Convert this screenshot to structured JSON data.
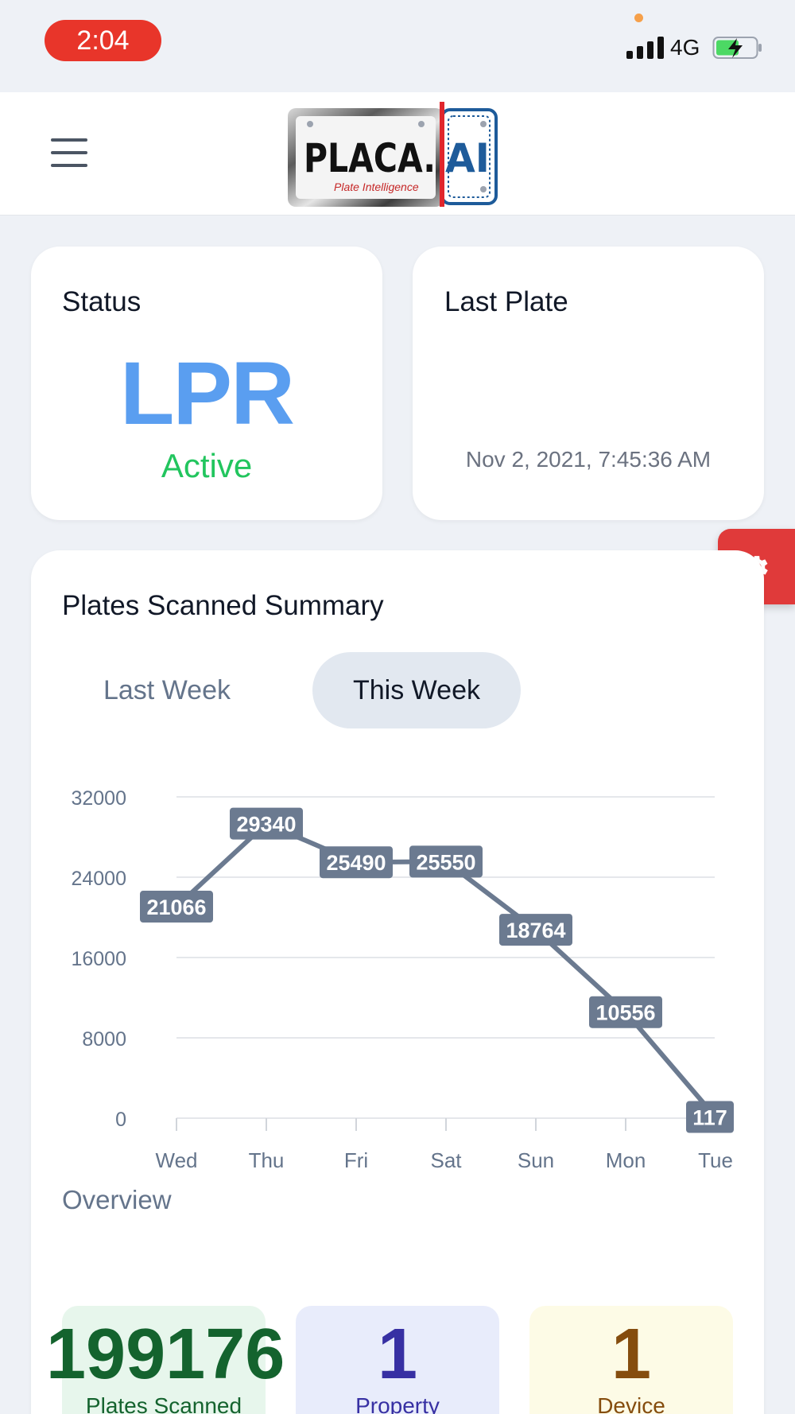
{
  "status_bar": {
    "time": "2:04",
    "network": "4G"
  },
  "header": {
    "logo_text": "PLACA.AI",
    "logo_tagline": "Plate Intelligence"
  },
  "status_card": {
    "title": "Status",
    "mode": "LPR",
    "state": "Active"
  },
  "last_plate_card": {
    "title": "Last Plate",
    "timestamp": "Nov 2, 2021, 7:45:36 AM"
  },
  "summary": {
    "title": "Plates Scanned Summary",
    "tabs": [
      {
        "label": "Last Week",
        "selected": false
      },
      {
        "label": "This Week",
        "selected": true
      }
    ]
  },
  "chart_data": {
    "type": "line",
    "categories": [
      "Wed",
      "Thu",
      "Fri",
      "Sat",
      "Sun",
      "Mon",
      "Tue"
    ],
    "values": [
      21066,
      29340,
      25490,
      25550,
      18764,
      10556,
      117
    ],
    "ylim": [
      0,
      32000
    ],
    "yticks": [
      0,
      8000,
      16000,
      24000,
      32000
    ],
    "grid": true,
    "color": "#6b7a90"
  },
  "overview": {
    "title": "Overview",
    "stats": [
      {
        "value": "199176",
        "label": "Plates Scanned"
      },
      {
        "value": "1",
        "label": "Property"
      },
      {
        "value": "1",
        "label": "Device"
      }
    ]
  },
  "colors": {
    "accent_red": "#e03a3a",
    "lpr_blue": "#5a9ef0",
    "active_green": "#22c55e"
  },
  "icons": {
    "menu": "hamburger-icon",
    "settings": "gear-icon"
  }
}
